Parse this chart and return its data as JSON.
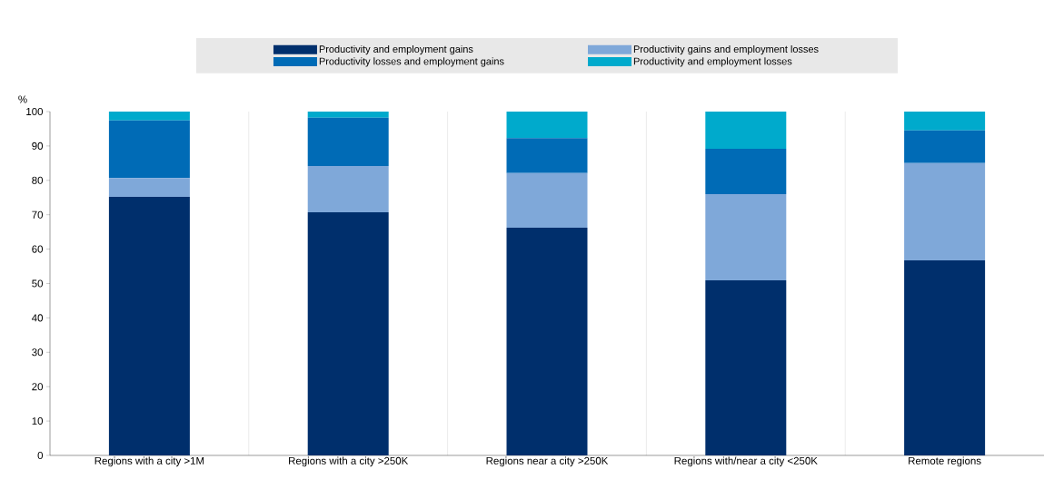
{
  "chart_data": {
    "type": "bar",
    "stacked": true,
    "ylabel": "%",
    "categories": [
      "Regions with a city >1M",
      "Regions with a city >250K",
      "Regions near a city >250K",
      "Regions with/near a city <250K",
      "Remote regions"
    ],
    "series": [
      {
        "name": "Productivity and employment gains",
        "color": "#002f6c",
        "values": [
          75.2,
          70.7,
          66.2,
          50.9,
          56.7
        ]
      },
      {
        "name": "Productivity gains and employment losses",
        "color": "#7fa8d9",
        "values": [
          5.5,
          13.5,
          15.9,
          25.1,
          28.3
        ]
      },
      {
        "name": "Productivity losses and employment gains",
        "color": "#006bb6",
        "values": [
          16.7,
          14.0,
          10.2,
          13.2,
          9.5
        ]
      },
      {
        "name": "Productivity and employment losses",
        "color": "#00aacc",
        "values": [
          2.6,
          1.8,
          7.7,
          10.8,
          5.5
        ]
      }
    ],
    "ylim": [
      0,
      100
    ],
    "yticks": [
      0,
      10,
      20,
      30,
      40,
      50,
      60,
      70,
      80,
      90,
      100
    ],
    "grid": "x",
    "legend": "top"
  }
}
